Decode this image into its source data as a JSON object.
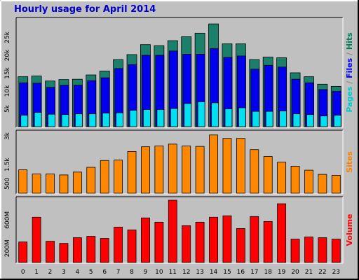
{
  "title": "Hourly usage for April 2014",
  "chart_data": {
    "type": "bar",
    "title": "Hourly usage for April 2014",
    "categories": [
      "0",
      "1",
      "2",
      "3",
      "4",
      "5",
      "6",
      "7",
      "8",
      "9",
      "10",
      "11",
      "12",
      "13",
      "14",
      "15",
      "16",
      "17",
      "18",
      "19",
      "20",
      "21",
      "22",
      "23"
    ],
    "panels": [
      {
        "name": "hits",
        "label": "Pages / Files / Hits",
        "label_parts": [
          {
            "text": "Pages",
            "color": "#00cccc"
          },
          {
            "text": " / ",
            "color": "#888888"
          },
          {
            "text": "Files",
            "color": "#0000ff"
          },
          {
            "text": " / ",
            "color": "#888888"
          },
          {
            "text": "Hits",
            "color": "#00805a"
          }
        ],
        "ylim": [
          0,
          30000
        ],
        "ticks": [
          {
            "v": 5000,
            "label": "5k"
          },
          {
            "v": 10000,
            "label": "10k"
          },
          {
            "v": 15000,
            "label": "15k"
          },
          {
            "v": 20000,
            "label": "20k"
          },
          {
            "v": 25000,
            "label": "25k"
          }
        ],
        "series": [
          {
            "name": "Hits",
            "color": "#1a806a",
            "values": [
              14000,
              14200,
              12800,
              13200,
              13300,
              14500,
              15600,
              18800,
              20200,
              23000,
              22700,
              24100,
              25200,
              26200,
              28800,
              23200,
              23200,
              18800,
              19500,
              19300,
              15100,
              14000,
              11900,
              11300
            ]
          },
          {
            "name": "Files",
            "color": "#0000ee",
            "values": [
              12300,
              12200,
              11000,
              11600,
              11600,
              12900,
              13700,
              16300,
              17400,
              20000,
              20000,
              21200,
              20300,
              20300,
              21900,
              19400,
              19800,
              16100,
              17200,
              16700,
              13300,
              12300,
              10400,
              9900
            ]
          },
          {
            "name": "Pages",
            "color": "#00e0f0",
            "values": [
              3200,
              4000,
              3500,
              3400,
              3600,
              3600,
              3800,
              3900,
              4600,
              4800,
              4800,
              5100,
              6500,
              7000,
              6700,
              5000,
              5300,
              4300,
              4300,
              4400,
              3600,
              3400,
              3000,
              3200
            ]
          }
        ]
      },
      {
        "name": "sites",
        "label": "Sites",
        "label_color": "#ff8000",
        "ylim": [
          0,
          3200
        ],
        "ticks": [
          {
            "v": 500,
            "label": "500"
          },
          {
            "v": 1500,
            "label": "1.5k"
          },
          {
            "v": 3000,
            "label": "3k"
          }
        ],
        "series": [
          {
            "name": "Sites",
            "color": "#ff8800",
            "values": [
              1230,
              1010,
              1010,
              960,
              1110,
              1360,
              1720,
              1740,
              2190,
              2440,
              2480,
              2580,
              2480,
              2460,
              3060,
              2880,
              2880,
              2290,
              1930,
              1630,
              1420,
              1210,
              990,
              940
            ]
          }
        ]
      },
      {
        "name": "volume",
        "label": "Volume",
        "label_color": "#ff0000",
        "ylim": [
          0,
          900
        ],
        "ticks": [
          {
            "v": 200,
            "label": "200M"
          },
          {
            "v": 600,
            "label": "600M"
          }
        ],
        "series": [
          {
            "name": "Volume",
            "color": "#ff0000",
            "values": [
              290,
              640,
              300,
              270,
              350,
              370,
              340,
              500,
              460,
              630,
              570,
              880,
              520,
              570,
              640,
              660,
              480,
              650,
              580,
              830,
              330,
              360,
              350,
              330
            ]
          }
        ]
      }
    ],
    "grid": false,
    "legend": "right"
  }
}
